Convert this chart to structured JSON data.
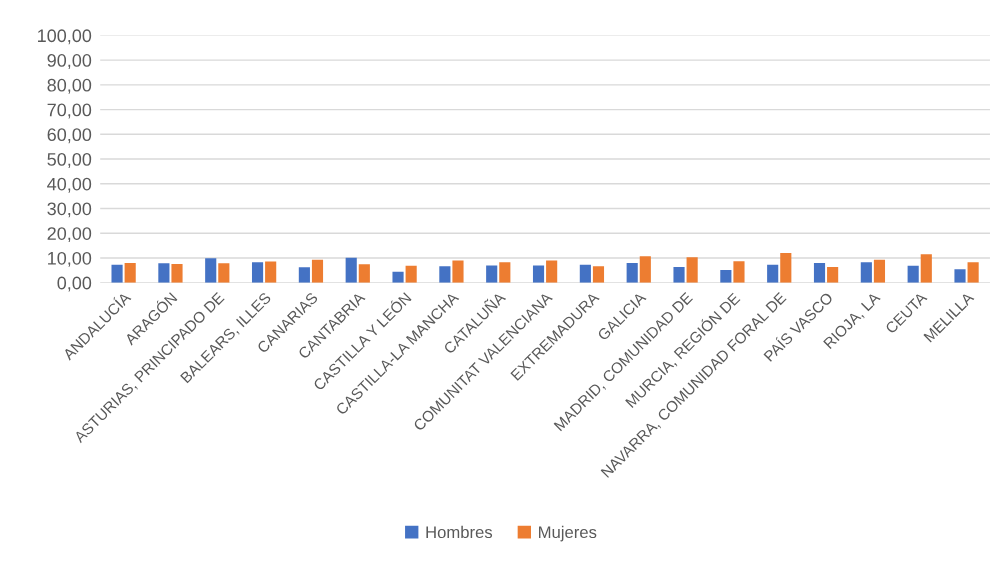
{
  "chart_data": {
    "type": "bar",
    "categories": [
      "ANDALUCÍA",
      "ARAGÓN",
      "ASTURIAS, PRINCIPADO DE",
      "BALEARS, ILLES",
      "CANARIAS",
      "CANTABRIA",
      "CASTILLA Y LEÓN",
      "CASTILLA-LA MANCHA",
      "CATALUÑA",
      "COMUNITAT VALENCIANA",
      "EXTREMADURA",
      "GALICIA",
      "MADRID, COMUNIDAD DE",
      "MURCIA, REGIÓN DE",
      "NAVARRA, COMUNIDAD FORAL DE",
      "PAÍS VASCO",
      "RIOJA, LA",
      "CEUTA",
      "MELILLA"
    ],
    "series": [
      {
        "name": "Hombres",
        "color": "#4472c4",
        "values": [
          7.3,
          7.9,
          9.9,
          8.3,
          6.2,
          10.1,
          4.4,
          6.6,
          7.0,
          7.0,
          7.3,
          8.0,
          6.3,
          5.1,
          7.3,
          8.0,
          8.3,
          6.8,
          5.4
        ]
      },
      {
        "name": "Mujeres",
        "color": "#ed7d31",
        "values": [
          8.0,
          7.6,
          7.9,
          8.6,
          9.3,
          7.5,
          6.8,
          9.0,
          8.3,
          9.0,
          6.6,
          10.7,
          10.3,
          8.7,
          12.0,
          6.3,
          9.3,
          11.5,
          8.3
        ]
      }
    ],
    "ylim": [
      0,
      100
    ],
    "yticks": [
      {
        "value": 0,
        "label": "0,00"
      },
      {
        "value": 10,
        "label": "10,00"
      },
      {
        "value": 20,
        "label": "20,00"
      },
      {
        "value": 30,
        "label": "30,00"
      },
      {
        "value": 40,
        "label": "40,00"
      },
      {
        "value": 50,
        "label": "50,00"
      },
      {
        "value": 60,
        "label": "60,00"
      },
      {
        "value": 70,
        "label": "70,00"
      },
      {
        "value": 80,
        "label": "80,00"
      },
      {
        "value": 90,
        "label": "90,00"
      },
      {
        "value": 100,
        "label": "100,00"
      }
    ],
    "grid": "y",
    "legend": "bottom"
  }
}
